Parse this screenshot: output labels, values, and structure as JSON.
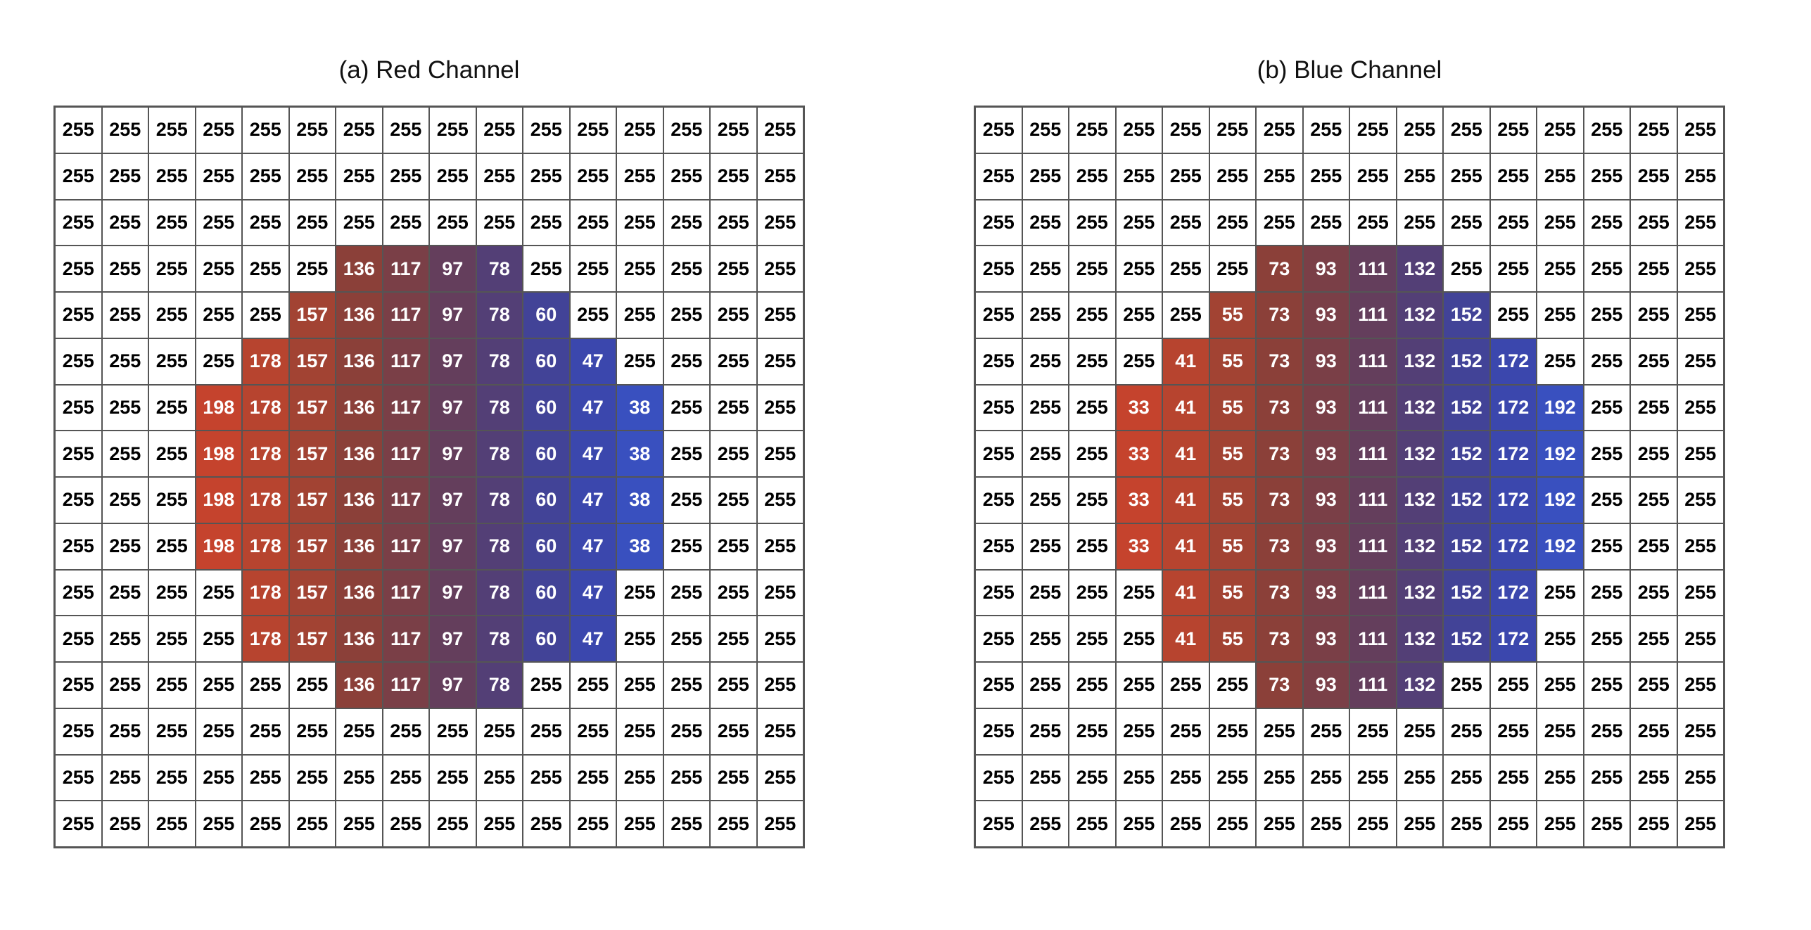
{
  "panels": [
    {
      "id": "red",
      "title": "(a) Red Channel",
      "grid": [
        [
          255,
          255,
          255,
          255,
          255,
          255,
          255,
          255,
          255,
          255,
          255,
          255,
          255,
          255,
          255,
          255
        ],
        [
          255,
          255,
          255,
          255,
          255,
          255,
          255,
          255,
          255,
          255,
          255,
          255,
          255,
          255,
          255,
          255
        ],
        [
          255,
          255,
          255,
          255,
          255,
          255,
          255,
          255,
          255,
          255,
          255,
          255,
          255,
          255,
          255,
          255
        ],
        [
          255,
          255,
          255,
          255,
          255,
          255,
          136,
          117,
          97,
          78,
          255,
          255,
          255,
          255,
          255,
          255
        ],
        [
          255,
          255,
          255,
          255,
          255,
          157,
          136,
          117,
          97,
          78,
          60,
          255,
          255,
          255,
          255,
          255
        ],
        [
          255,
          255,
          255,
          255,
          178,
          157,
          136,
          117,
          97,
          78,
          60,
          47,
          255,
          255,
          255,
          255
        ],
        [
          255,
          255,
          255,
          198,
          178,
          157,
          136,
          117,
          97,
          78,
          60,
          47,
          38,
          255,
          255,
          255
        ],
        [
          255,
          255,
          255,
          198,
          178,
          157,
          136,
          117,
          97,
          78,
          60,
          47,
          38,
          255,
          255,
          255
        ],
        [
          255,
          255,
          255,
          198,
          178,
          157,
          136,
          117,
          97,
          78,
          60,
          47,
          38,
          255,
          255,
          255
        ],
        [
          255,
          255,
          255,
          198,
          178,
          157,
          136,
          117,
          97,
          78,
          60,
          47,
          38,
          255,
          255,
          255
        ],
        [
          255,
          255,
          255,
          255,
          178,
          157,
          136,
          117,
          97,
          78,
          60,
          47,
          255,
          255,
          255,
          255
        ],
        [
          255,
          255,
          255,
          255,
          178,
          157,
          136,
          117,
          97,
          78,
          60,
          47,
          255,
          255,
          255,
          255
        ],
        [
          255,
          255,
          255,
          255,
          255,
          255,
          136,
          117,
          97,
          78,
          255,
          255,
          255,
          255,
          255,
          255
        ],
        [
          255,
          255,
          255,
          255,
          255,
          255,
          255,
          255,
          255,
          255,
          255,
          255,
          255,
          255,
          255,
          255
        ],
        [
          255,
          255,
          255,
          255,
          255,
          255,
          255,
          255,
          255,
          255,
          255,
          255,
          255,
          255,
          255,
          255
        ],
        [
          255,
          255,
          255,
          255,
          255,
          255,
          255,
          255,
          255,
          255,
          255,
          255,
          255,
          255,
          255,
          255
        ]
      ]
    },
    {
      "id": "blue",
      "title": "(b) Blue Channel",
      "grid": [
        [
          255,
          255,
          255,
          255,
          255,
          255,
          255,
          255,
          255,
          255,
          255,
          255,
          255,
          255,
          255,
          255
        ],
        [
          255,
          255,
          255,
          255,
          255,
          255,
          255,
          255,
          255,
          255,
          255,
          255,
          255,
          255,
          255,
          255
        ],
        [
          255,
          255,
          255,
          255,
          255,
          255,
          255,
          255,
          255,
          255,
          255,
          255,
          255,
          255,
          255,
          255
        ],
        [
          255,
          255,
          255,
          255,
          255,
          255,
          73,
          93,
          111,
          132,
          255,
          255,
          255,
          255,
          255,
          255
        ],
        [
          255,
          255,
          255,
          255,
          255,
          55,
          73,
          93,
          111,
          132,
          152,
          255,
          255,
          255,
          255,
          255
        ],
        [
          255,
          255,
          255,
          255,
          41,
          55,
          73,
          93,
          111,
          132,
          152,
          172,
          255,
          255,
          255,
          255
        ],
        [
          255,
          255,
          255,
          33,
          41,
          55,
          73,
          93,
          111,
          132,
          152,
          172,
          192,
          255,
          255,
          255
        ],
        [
          255,
          255,
          255,
          33,
          41,
          55,
          73,
          93,
          111,
          132,
          152,
          172,
          192,
          255,
          255,
          255
        ],
        [
          255,
          255,
          255,
          33,
          41,
          55,
          73,
          93,
          111,
          132,
          152,
          172,
          192,
          255,
          255,
          255
        ],
        [
          255,
          255,
          255,
          33,
          41,
          55,
          73,
          93,
          111,
          132,
          152,
          172,
          192,
          255,
          255,
          255
        ],
        [
          255,
          255,
          255,
          255,
          41,
          55,
          73,
          93,
          111,
          132,
          152,
          172,
          255,
          255,
          255,
          255
        ],
        [
          255,
          255,
          255,
          255,
          41,
          55,
          73,
          93,
          111,
          132,
          152,
          172,
          255,
          255,
          255,
          255
        ],
        [
          255,
          255,
          255,
          255,
          255,
          255,
          73,
          93,
          111,
          132,
          255,
          255,
          255,
          255,
          255,
          255
        ],
        [
          255,
          255,
          255,
          255,
          255,
          255,
          255,
          255,
          255,
          255,
          255,
          255,
          255,
          255,
          255,
          255
        ],
        [
          255,
          255,
          255,
          255,
          255,
          255,
          255,
          255,
          255,
          255,
          255,
          255,
          255,
          255,
          255,
          255
        ],
        [
          255,
          255,
          255,
          255,
          255,
          255,
          255,
          255,
          255,
          255,
          255,
          255,
          255,
          255,
          255,
          255
        ]
      ]
    }
  ],
  "column_colors": {
    "3": "#c5432d",
    "4": "#b7442f",
    "5": "#a24333",
    "6": "#8b4039",
    "7": "#7a3f47",
    "8": "#643e5c",
    "9": "#533f76",
    "10": "#424397",
    "11": "#3b47ad",
    "12": "#3950bf"
  }
}
